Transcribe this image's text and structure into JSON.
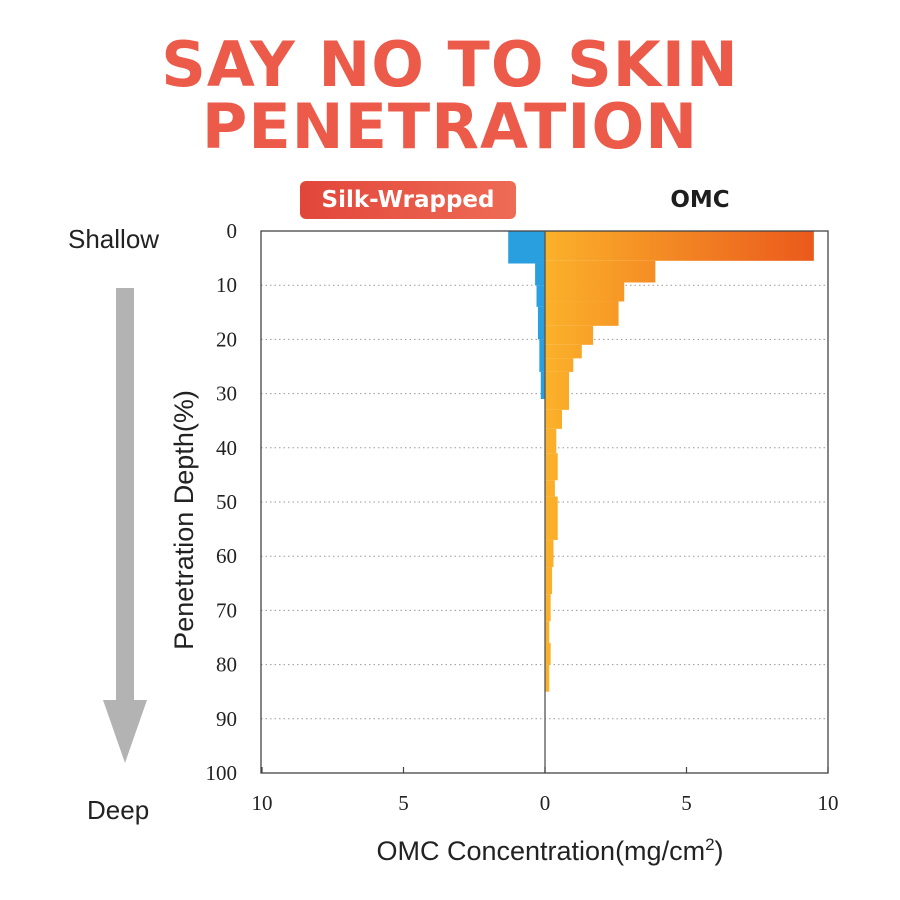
{
  "header": {
    "line1": "SAY NO TO SKIN",
    "line2": "PENETRATION"
  },
  "legend": {
    "silk_label": "Silk-Wrapped",
    "omc_label": "OMC"
  },
  "side_labels": {
    "top": "Shallow",
    "bottom": "Deep"
  },
  "colors": {
    "title": "#ec5a4a",
    "silk": "#2a9fe0",
    "omc_start": "#fbb12a",
    "omc_end": "#ea5a1c",
    "arrow": "#b3b3b3"
  },
  "chart_data": {
    "type": "bar",
    "orientation": "horizontal-back-to-back",
    "title": "",
    "xlabel_prefix": "OMC Concentration(mg/cm",
    "xlabel_superscript": "2",
    "xlabel_suffix": ")",
    "ylabel": "Penetration Depth(%)",
    "x_ticks": [
      "10",
      "5",
      "0",
      "5",
      "10"
    ],
    "x_range": [
      -10,
      10
    ],
    "y_ticks": [
      "0",
      "10",
      "20",
      "30",
      "40",
      "50",
      "60",
      "70",
      "80",
      "90",
      "100"
    ],
    "y_range": [
      0,
      100
    ],
    "grid": "horizontal dotted",
    "series": [
      {
        "name": "Silk-Wrapped",
        "side": "left",
        "bins": [
          {
            "from": 0,
            "to": 6,
            "value": 1.3
          },
          {
            "from": 6,
            "to": 10,
            "value": 0.35
          },
          {
            "from": 10,
            "to": 14,
            "value": 0.3
          },
          {
            "from": 14,
            "to": 20,
            "value": 0.25
          },
          {
            "from": 20,
            "to": 26,
            "value": 0.2
          },
          {
            "from": 26,
            "to": 31,
            "value": 0.15
          }
        ]
      },
      {
        "name": "OMC",
        "side": "right",
        "bins": [
          {
            "from": 0,
            "to": 5.5,
            "value": 9.5
          },
          {
            "from": 5.5,
            "to": 9.5,
            "value": 3.9
          },
          {
            "from": 9.5,
            "to": 13,
            "value": 2.8
          },
          {
            "from": 13,
            "to": 17.5,
            "value": 2.6
          },
          {
            "from": 17.5,
            "to": 21,
            "value": 1.7
          },
          {
            "from": 21,
            "to": 23.5,
            "value": 1.3
          },
          {
            "from": 23.5,
            "to": 26,
            "value": 1.0
          },
          {
            "from": 26,
            "to": 33,
            "value": 0.85
          },
          {
            "from": 33,
            "to": 36.5,
            "value": 0.6
          },
          {
            "from": 36.5,
            "to": 41,
            "value": 0.4
          },
          {
            "from": 41,
            "to": 46,
            "value": 0.45
          },
          {
            "from": 46,
            "to": 49,
            "value": 0.35
          },
          {
            "from": 49,
            "to": 57,
            "value": 0.45
          },
          {
            "from": 57,
            "to": 62,
            "value": 0.3
          },
          {
            "from": 62,
            "to": 67,
            "value": 0.25
          },
          {
            "from": 67,
            "to": 72,
            "value": 0.2
          },
          {
            "from": 72,
            "to": 76,
            "value": 0.15
          },
          {
            "from": 76,
            "to": 80,
            "value": 0.2
          },
          {
            "from": 80,
            "to": 85,
            "value": 0.15
          }
        ]
      }
    ]
  }
}
